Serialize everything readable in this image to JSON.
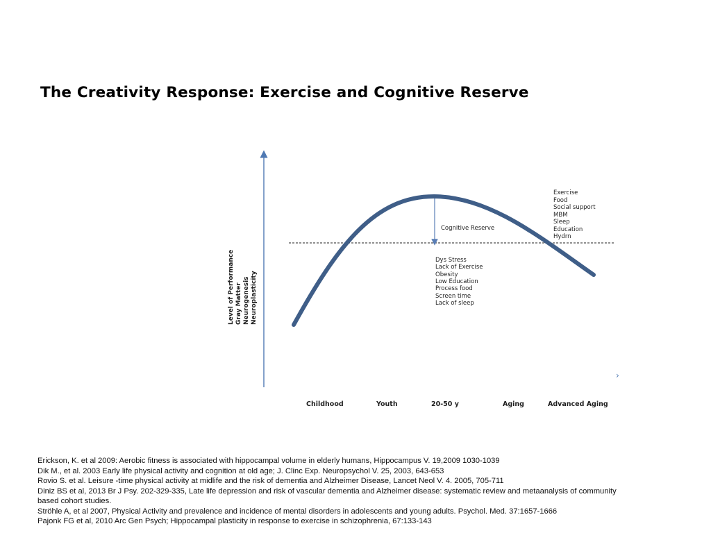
{
  "title": "The Creativity Response: Exercise and Cognitive Reserve",
  "diagram": {
    "y_axis_labels": [
      "Level of Performance",
      "Gray Matter",
      "Neurogenesis",
      "Neuroplasticity"
    ],
    "x_axis_labels": [
      "Childhood",
      "Youth",
      "20-50 y",
      "Aging",
      "Advanced Aging"
    ],
    "arrow_glyph": "›",
    "cognitive_reserve_label": "Cognitive Reserve",
    "positive_factors": [
      "Exercise",
      "Food",
      "Social support",
      "MBM",
      "Sleep",
      "Education",
      "Hydrn"
    ],
    "negative_factors": [
      "Dys Stress",
      "Lack of Exercise",
      "Obesity",
      "Low Education",
      "Process food",
      "Screen time",
      "Lack of sleep"
    ],
    "colors": {
      "curve": "#3f5e88",
      "axis": "#4f79b3",
      "reserve_arrow": "#5a7eb5",
      "threshold": "#222222"
    }
  },
  "references": [
    "Erickson, K. et al 2009: Aerobic fitness is associated with hippocampal volume in elderly humans, Hippocampus V. 19,2009 1030-1039",
    "Dik M., et al. 2003 Early life physical activity and cognition at old age; J. Clinc Exp. Neuropsychol V. 25, 2003, 643-653",
    "Rovio S. et al. Leisure -time physical activity at midlife and the risk of dementia and Alzheimer Disease, Lancet Neol V. 4. 2005, 705-711",
    "Diniz BS et al, 2013 Br J Psy. 202-329-335, Late life depression and risk of vascular dementia and Alzheimer disease: systematic review and metaanalysis of community based cohort studies.",
    "Ströhle A, et al 2007, Physical Activity and prevalence and incidence of mental disorders in adolescents and young adults. Psychol. Med. 37:1657-1666",
    "Pajonk FG et al, 2010 Arc Gen Psych; Hippocampal plasticity in response to exercise in schizophrenia, 67:133-143"
  ]
}
